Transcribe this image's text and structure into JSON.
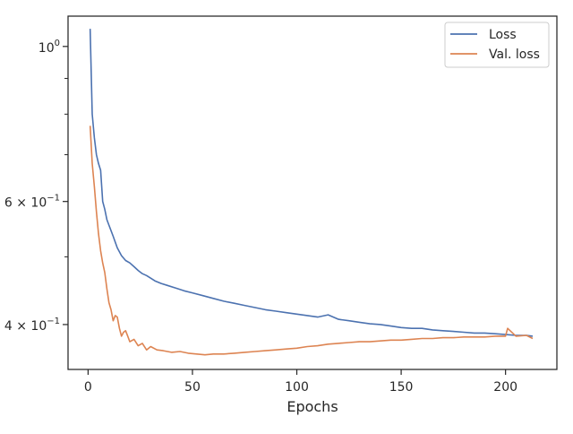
{
  "chart_data": {
    "type": "line",
    "xlabel": "Epochs",
    "ylabel": "",
    "yscale": "log",
    "xlim": [
      -9.6,
      224.6
    ],
    "ylim": [
      0.345,
      1.105
    ],
    "grid": false,
    "legend_position": "top-right",
    "x_ticks": [
      {
        "value": 0,
        "label": "0"
      },
      {
        "value": 50,
        "label": "50"
      },
      {
        "value": 100,
        "label": "100"
      },
      {
        "value": 150,
        "label": "150"
      },
      {
        "value": 200,
        "label": "200"
      }
    ],
    "y_major_ticks": [
      {
        "value": 0.4,
        "base": "4 × 10",
        "exp": "−1"
      },
      {
        "value": 0.6,
        "base": "6 × 10",
        "exp": "−1"
      },
      {
        "value": 1.0,
        "base": "10",
        "exp": "0"
      }
    ],
    "y_minor_ticks": [
      0.5,
      0.7,
      0.8,
      0.9
    ],
    "series": [
      {
        "name": "Loss",
        "color": "#4c72b0",
        "points": [
          [
            1,
            1.06
          ],
          [
            2,
            0.8
          ],
          [
            3,
            0.74
          ],
          [
            4,
            0.7
          ],
          [
            5,
            0.68
          ],
          [
            6,
            0.665
          ],
          [
            7,
            0.6
          ],
          [
            8,
            0.585
          ],
          [
            9,
            0.565
          ],
          [
            10,
            0.555
          ],
          [
            12,
            0.535
          ],
          [
            14,
            0.515
          ],
          [
            16,
            0.502
          ],
          [
            18,
            0.494
          ],
          [
            20,
            0.49
          ],
          [
            22,
            0.484
          ],
          [
            24,
            0.478
          ],
          [
            26,
            0.473
          ],
          [
            28,
            0.47
          ],
          [
            30,
            0.466
          ],
          [
            32,
            0.462
          ],
          [
            35,
            0.458
          ],
          [
            38,
            0.455
          ],
          [
            42,
            0.451
          ],
          [
            46,
            0.447
          ],
          [
            50,
            0.444
          ],
          [
            55,
            0.44
          ],
          [
            60,
            0.436
          ],
          [
            65,
            0.432
          ],
          [
            70,
            0.429
          ],
          [
            75,
            0.426
          ],
          [
            80,
            0.423
          ],
          [
            85,
            0.42
          ],
          [
            90,
            0.418
          ],
          [
            95,
            0.416
          ],
          [
            100,
            0.414
          ],
          [
            105,
            0.412
          ],
          [
            110,
            0.41
          ],
          [
            115,
            0.413
          ],
          [
            120,
            0.407
          ],
          [
            125,
            0.405
          ],
          [
            130,
            0.403
          ],
          [
            135,
            0.401
          ],
          [
            140,
            0.4
          ],
          [
            145,
            0.398
          ],
          [
            150,
            0.396
          ],
          [
            155,
            0.395
          ],
          [
            160,
            0.395
          ],
          [
            165,
            0.393
          ],
          [
            170,
            0.392
          ],
          [
            175,
            0.391
          ],
          [
            180,
            0.39
          ],
          [
            185,
            0.389
          ],
          [
            190,
            0.389
          ],
          [
            195,
            0.388
          ],
          [
            200,
            0.387
          ],
          [
            205,
            0.386
          ],
          [
            210,
            0.386
          ],
          [
            213,
            0.385
          ]
        ]
      },
      {
        "name": "Val. loss",
        "color": "#dd8452",
        "points": [
          [
            1,
            0.77
          ],
          [
            2,
            0.68
          ],
          [
            3,
            0.63
          ],
          [
            4,
            0.58
          ],
          [
            5,
            0.54
          ],
          [
            6,
            0.51
          ],
          [
            7,
            0.49
          ],
          [
            8,
            0.475
          ],
          [
            9,
            0.45
          ],
          [
            10,
            0.43
          ],
          [
            11,
            0.42
          ],
          [
            12,
            0.405
          ],
          [
            13,
            0.412
          ],
          [
            14,
            0.41
          ],
          [
            15,
            0.395
          ],
          [
            16,
            0.385
          ],
          [
            17,
            0.39
          ],
          [
            18,
            0.392
          ],
          [
            19,
            0.385
          ],
          [
            20,
            0.378
          ],
          [
            22,
            0.381
          ],
          [
            24,
            0.373
          ],
          [
            26,
            0.376
          ],
          [
            28,
            0.368
          ],
          [
            30,
            0.372
          ],
          [
            33,
            0.368
          ],
          [
            36,
            0.367
          ],
          [
            40,
            0.365
          ],
          [
            44,
            0.366
          ],
          [
            48,
            0.364
          ],
          [
            52,
            0.363
          ],
          [
            56,
            0.362
          ],
          [
            60,
            0.363
          ],
          [
            65,
            0.363
          ],
          [
            70,
            0.364
          ],
          [
            75,
            0.365
          ],
          [
            80,
            0.366
          ],
          [
            85,
            0.367
          ],
          [
            90,
            0.368
          ],
          [
            95,
            0.369
          ],
          [
            100,
            0.37
          ],
          [
            105,
            0.372
          ],
          [
            110,
            0.373
          ],
          [
            115,
            0.375
          ],
          [
            120,
            0.376
          ],
          [
            125,
            0.377
          ],
          [
            130,
            0.378
          ],
          [
            135,
            0.378
          ],
          [
            140,
            0.379
          ],
          [
            145,
            0.38
          ],
          [
            150,
            0.38
          ],
          [
            155,
            0.381
          ],
          [
            160,
            0.382
          ],
          [
            165,
            0.382
          ],
          [
            170,
            0.383
          ],
          [
            175,
            0.383
          ],
          [
            180,
            0.384
          ],
          [
            185,
            0.384
          ],
          [
            190,
            0.384
          ],
          [
            195,
            0.385
          ],
          [
            200,
            0.385
          ],
          [
            201,
            0.395
          ],
          [
            205,
            0.385
          ],
          [
            210,
            0.386
          ],
          [
            213,
            0.382
          ]
        ]
      }
    ]
  }
}
